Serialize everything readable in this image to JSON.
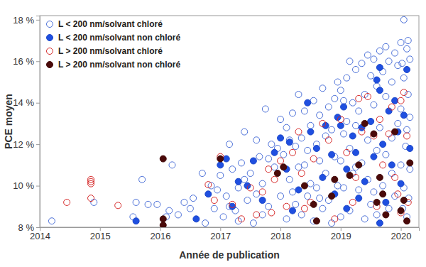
{
  "chart_data": {
    "type": "scatter",
    "x_label": "Année de publication",
    "y_label": "PCE moyen",
    "xlim": [
      2014,
      2020.3
    ],
    "xticks": [
      2014,
      2015,
      2016,
      2017,
      2018,
      2019,
      2020
    ],
    "ylim": [
      8,
      18.2
    ],
    "yticks": [
      {
        "value": 8,
        "label": "8 %"
      },
      {
        "value": 10,
        "label": "10 %"
      },
      {
        "value": 12,
        "label": "12 %"
      },
      {
        "value": 14,
        "label": "14 %"
      },
      {
        "value": 16,
        "label": "16 %"
      },
      {
        "value": 18,
        "label": "18 %"
      }
    ],
    "grid": false,
    "legend": "top-left",
    "series": [
      {
        "name": "L < 200 nm/solvant chloré",
        "color": "#4a6fd8",
        "marker": "open",
        "x": [
          2014.2,
          2014.9,
          2015.55,
          2015.6,
          2015.7,
          2015.8,
          2015.95,
          2016.1,
          2016.15,
          2016.2,
          2016.3,
          2016.4,
          2016.5,
          2016.55,
          2016.7,
          2016.75,
          2016.85,
          2016.9,
          2016.95,
          2017.0,
          2017.05,
          2017.1,
          2017.15,
          2017.2,
          2017.25,
          2017.3,
          2017.35,
          2017.4,
          2017.45,
          2017.5,
          2017.55,
          2017.6,
          2017.65,
          2017.7,
          2017.75,
          2017.8,
          2017.85,
          2017.9,
          2017.95,
          2017.15,
          2017.4,
          2017.6,
          2017.8,
          2017.3,
          2017.7,
          2018.0,
          2018.0,
          2018.05,
          2018.1,
          2018.1,
          2018.15,
          2018.2,
          2018.2,
          2018.25,
          2018.3,
          2018.3,
          2018.35,
          2018.35,
          2018.4,
          2018.4,
          2018.45,
          2018.5,
          2018.5,
          2018.55,
          2018.55,
          2018.6,
          2018.6,
          2018.65,
          2018.65,
          2018.7,
          2018.7,
          2018.75,
          2018.75,
          2018.8,
          2018.8,
          2018.85,
          2018.85,
          2018.9,
          2018.9,
          2018.95,
          2018.95,
          2018.15,
          2018.45,
          2018.25,
          2018.65,
          2019.0,
          2019.0,
          2019.0,
          2019.05,
          2019.05,
          2019.1,
          2019.1,
          2019.15,
          2019.15,
          2019.2,
          2019.2,
          2019.25,
          2019.25,
          2019.3,
          2019.3,
          2019.35,
          2019.35,
          2019.4,
          2019.4,
          2019.45,
          2019.45,
          2019.5,
          2019.5,
          2019.55,
          2019.55,
          2019.6,
          2019.6,
          2019.6,
          2019.65,
          2019.65,
          2019.7,
          2019.7,
          2019.75,
          2019.75,
          2019.8,
          2019.8,
          2019.85,
          2019.85,
          2019.9,
          2019.9,
          2019.95,
          2019.95,
          2019.15,
          2019.45,
          2019.75,
          2019.05,
          2019.25,
          2019.55,
          2019.85,
          2020.0,
          2020.0,
          2020.0,
          2020.05,
          2020.05,
          2020.05,
          2020.1,
          2020.1,
          2020.1,
          2020.12,
          2020.12,
          2020.15,
          2020.15,
          2020.15,
          2020.02,
          2020.08,
          2020.13,
          2020.03
        ],
        "values": [
          8.3,
          9.2,
          8.5,
          9.2,
          10.3,
          9.1,
          9.1,
          8.5,
          8.8,
          11.0,
          8.6,
          9.2,
          8.9,
          9.4,
          10.6,
          8.2,
          10.0,
          8.9,
          9.8,
          10.5,
          8.5,
          9.5,
          12.0,
          10.8,
          8.8,
          9.9,
          11.1,
          12.6,
          9.3,
          10.6,
          8.2,
          12.2,
          11.4,
          10.1,
          13.7,
          9.0,
          12.0,
          10.9,
          11.8,
          9.0,
          10.3,
          9.6,
          11.3,
          8.3,
          8.6,
          13.2,
          9.5,
          11.5,
          12.8,
          8.4,
          10.3,
          13.5,
          9.7,
          11.9,
          14.4,
          10.9,
          12.3,
          8.6,
          13.6,
          11.0,
          9.5,
          12.9,
          10.1,
          14.1,
          8.3,
          12.0,
          9.9,
          13.4,
          11.2,
          14.7,
          8.9,
          12.4,
          10.6,
          13.8,
          9.3,
          12.7,
          8.2,
          14.2,
          11.4,
          10.0,
          15.0,
          12.2,
          11.7,
          9.1,
          9.4,
          14.6,
          11.2,
          8.5,
          12.5,
          9.9,
          15.2,
          13.1,
          11.8,
          8.8,
          14.0,
          10.6,
          15.6,
          12.9,
          9.8,
          13.6,
          15.9,
          11.1,
          14.4,
          8.4,
          12.2,
          10.3,
          15.3,
          9.1,
          13.9,
          16.1,
          11.7,
          14.8,
          8.6,
          16.5,
          12.8,
          15.5,
          10.0,
          14.3,
          11.5,
          16.0,
          8.9,
          15.0,
          12.3,
          16.4,
          9.5,
          15.8,
          13.0,
          16.0,
          16.3,
          16.7,
          14.1,
          10.9,
          9.7,
          10.6,
          16.9,
          13.7,
          11.0,
          18.0,
          15.2,
          9.9,
          16.6,
          12.7,
          8.5,
          17.0,
          14.4,
          16.1,
          10.8,
          13.3,
          15.9,
          11.9,
          9.4,
          8.9
        ]
      },
      {
        "name": "L < 200 nm/solvant non chloré",
        "color": "#1f4fe0",
        "marker": "filled",
        "x": [
          2015.6,
          2016.6,
          2016.8,
          2017.0,
          2017.1,
          2017.2,
          2017.3,
          2017.45,
          2017.55,
          2017.7,
          2017.9,
          2018.0,
          2018.1,
          2018.15,
          2018.3,
          2018.45,
          2018.5,
          2018.6,
          2018.7,
          2018.75,
          2018.85,
          2018.95,
          2019.0,
          2019.05,
          2019.1,
          2019.2,
          2019.25,
          2019.35,
          2019.4,
          2019.5,
          2019.55,
          2019.6,
          2019.65,
          2019.65,
          2019.7,
          2019.75,
          2019.8,
          2019.85,
          2019.9,
          2019.95,
          2020.0,
          2020.05,
          2020.1,
          2020.15,
          2019.65,
          2019.3,
          2018.2,
          2019.1,
          2018.9
        ],
        "values": [
          8.3,
          8.4,
          9.6,
          11.0,
          11.3,
          9.0,
          10.2,
          10.0,
          11.2,
          9.3,
          11.6,
          12.3,
          10.8,
          12.1,
          9.8,
          14.0,
          12.6,
          11.8,
          10.4,
          12.9,
          11.5,
          13.3,
          12.9,
          13.8,
          10.8,
          12.4,
          11.6,
          12.8,
          10.2,
          13.1,
          11.4,
          15.1,
          15.7,
          14.6,
          12.0,
          9.2,
          13.6,
          11.0,
          14.1,
          12.6,
          10.1,
          13.4,
          15.6,
          11.8,
          8.2,
          9.4,
          8.8,
          8.9,
          9.6
        ]
      },
      {
        "name": "L > 200 nm/solvant chloré",
        "color": "#d62828",
        "marker": "open",
        "x": [
          2014.45,
          2014.85,
          2014.85,
          2014.85,
          2014.85,
          2015.3,
          2016.8,
          2016.9,
          2017.0,
          2017.2,
          2017.35,
          2017.5,
          2017.6,
          2017.7,
          2017.8,
          2017.9,
          2018.0,
          2018.1,
          2018.2,
          2018.3,
          2018.35,
          2018.5,
          2018.55,
          2018.7,
          2018.8,
          2018.9,
          2019.0,
          2019.1,
          2019.2,
          2019.3,
          2019.35,
          2019.45,
          2019.55,
          2019.65,
          2019.7,
          2019.8,
          2019.9,
          2019.95,
          2020.0,
          2020.05,
          2020.1,
          2020.12,
          2020.0,
          2019.85,
          2018.4,
          2017.85,
          2019.25,
          2019.6
        ],
        "values": [
          9.2,
          10.3,
          10.2,
          10.1,
          9.4,
          9.05,
          10.05,
          9.3,
          11.4,
          9.1,
          8.4,
          9.9,
          8.6,
          9.7,
          10.8,
          10.3,
          11.2,
          9.0,
          11.6,
          12.6,
          10.6,
          9.2,
          11.3,
          13.0,
          12.2,
          8.4,
          13.2,
          11.6,
          9.2,
          14.2,
          12.6,
          14.3,
          12.4,
          13.2,
          11.0,
          12.5,
          10.4,
          9.6,
          14.1,
          14.5,
          12.4,
          9.2,
          8.7,
          13.8,
          8.9,
          8.7,
          10.4,
          9.0
        ]
      },
      {
        "name": "L > 200 nm/solvant non chloré",
        "color": "#4a0a0a",
        "marker": "filled",
        "x": [
          2016.05,
          2016.05,
          2016.05,
          2017.0,
          2017.95,
          2018.05,
          2018.55,
          2018.6,
          2018.85,
          2018.9,
          2019.15,
          2019.3,
          2019.55,
          2019.6,
          2019.65,
          2019.7,
          2019.75,
          2019.9,
          2020.0,
          2020.05,
          2020.1,
          2020.15,
          2019.4,
          2018.4
        ],
        "values": [
          11.3,
          8.4,
          8.1,
          11.3,
          10.6,
          10.9,
          9.1,
          8.3,
          9.5,
          10.3,
          10.5,
          11.0,
          12.5,
          9.2,
          10.4,
          9.6,
          8.6,
          12.6,
          8.8,
          9.3,
          8.3,
          11.1,
          13.0,
          10.0
        ]
      }
    ]
  }
}
